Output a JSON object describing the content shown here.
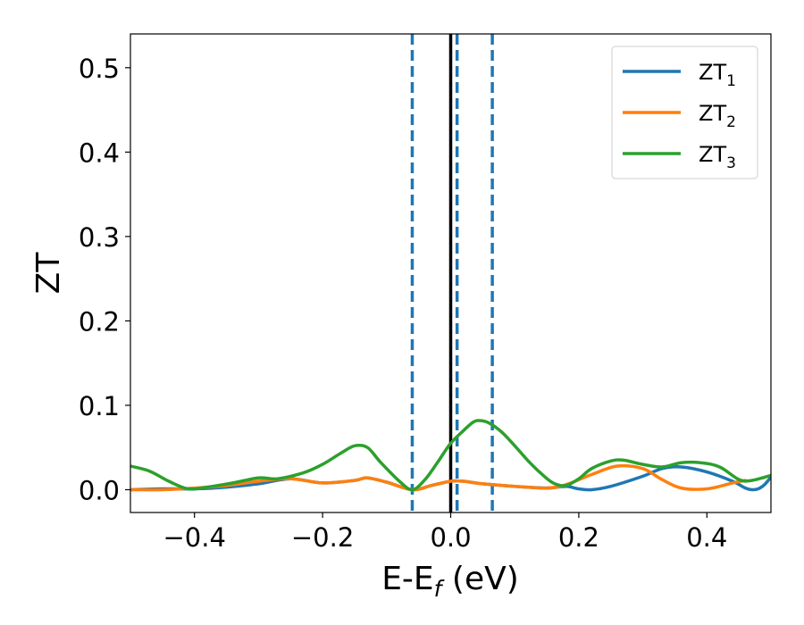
{
  "chart_data": {
    "type": "line",
    "xlabel": "E-E",
    "xlabel_sub": "f",
    "xlabel_unit": " (eV)",
    "ylabel": "ZT",
    "xlim": [
      -0.5,
      0.5
    ],
    "ylim": [
      -0.027,
      0.54
    ],
    "xticks": [
      -0.4,
      -0.2,
      0.0,
      0.2,
      0.4
    ],
    "xtick_labels": [
      "−0.4",
      "−0.2",
      "0.0",
      "0.2",
      "0.4"
    ],
    "yticks": [
      0.0,
      0.1,
      0.2,
      0.3,
      0.4,
      0.5
    ],
    "ytick_labels": [
      "0.0",
      "0.1",
      "0.2",
      "0.3",
      "0.4",
      "0.5"
    ],
    "grid": false,
    "legend_position": "top-right",
    "series": [
      {
        "name": "ZT",
        "name_sub": "1",
        "color": "#1f77b4",
        "points": [
          [
            -0.5,
            0.0
          ],
          [
            -0.45,
            0.001
          ],
          [
            -0.4,
            0.001
          ],
          [
            -0.35,
            0.003
          ],
          [
            -0.3,
            0.007
          ],
          [
            -0.25,
            0.013
          ],
          [
            -0.2,
            0.008
          ],
          [
            -0.15,
            0.011
          ],
          [
            -0.13,
            0.014
          ],
          [
            -0.1,
            0.009
          ],
          [
            -0.06,
            0.0
          ],
          [
            -0.03,
            0.005
          ],
          [
            0.0,
            0.01
          ],
          [
            0.02,
            0.01
          ],
          [
            0.05,
            0.007
          ],
          [
            0.1,
            0.004
          ],
          [
            0.15,
            0.002
          ],
          [
            0.18,
            0.004
          ],
          [
            0.2,
            0.001
          ],
          [
            0.22,
            0.0
          ],
          [
            0.25,
            0.004
          ],
          [
            0.3,
            0.016
          ],
          [
            0.33,
            0.025
          ],
          [
            0.36,
            0.027
          ],
          [
            0.4,
            0.021
          ],
          [
            0.44,
            0.01
          ],
          [
            0.46,
            0.002
          ],
          [
            0.47,
            0.0
          ],
          [
            0.48,
            0.001
          ],
          [
            0.49,
            0.006
          ],
          [
            0.5,
            0.015
          ]
        ]
      },
      {
        "name": "ZT",
        "name_sub": "2",
        "color": "#ff7f0e",
        "points": [
          [
            -0.5,
            0.0
          ],
          [
            -0.45,
            0.0
          ],
          [
            -0.4,
            0.002
          ],
          [
            -0.35,
            0.005
          ],
          [
            -0.3,
            0.01
          ],
          [
            -0.25,
            0.013
          ],
          [
            -0.2,
            0.008
          ],
          [
            -0.15,
            0.011
          ],
          [
            -0.13,
            0.014
          ],
          [
            -0.1,
            0.009
          ],
          [
            -0.06,
            0.0
          ],
          [
            -0.03,
            0.005
          ],
          [
            0.0,
            0.01
          ],
          [
            0.02,
            0.01
          ],
          [
            0.05,
            0.007
          ],
          [
            0.1,
            0.004
          ],
          [
            0.15,
            0.002
          ],
          [
            0.18,
            0.006
          ],
          [
            0.22,
            0.018
          ],
          [
            0.26,
            0.028
          ],
          [
            0.3,
            0.025
          ],
          [
            0.33,
            0.012
          ],
          [
            0.36,
            0.002
          ],
          [
            0.4,
            0.001
          ],
          [
            0.44,
            0.008
          ],
          [
            0.46,
            0.011
          ]
        ]
      },
      {
        "name": "ZT",
        "name_sub": "3",
        "color": "#2ca02c",
        "points": [
          [
            -0.5,
            0.028
          ],
          [
            -0.47,
            0.022
          ],
          [
            -0.44,
            0.01
          ],
          [
            -0.41,
            0.001
          ],
          [
            -0.38,
            0.003
          ],
          [
            -0.34,
            0.008
          ],
          [
            -0.3,
            0.014
          ],
          [
            -0.27,
            0.013
          ],
          [
            -0.23,
            0.02
          ],
          [
            -0.2,
            0.03
          ],
          [
            -0.17,
            0.044
          ],
          [
            -0.15,
            0.052
          ],
          [
            -0.13,
            0.05
          ],
          [
            -0.11,
            0.033
          ],
          [
            -0.08,
            0.01
          ],
          [
            -0.06,
            0.0
          ],
          [
            -0.04,
            0.012
          ],
          [
            -0.02,
            0.033
          ],
          [
            0.0,
            0.055
          ],
          [
            0.02,
            0.07
          ],
          [
            0.035,
            0.08
          ],
          [
            0.045,
            0.082
          ],
          [
            0.06,
            0.079
          ],
          [
            0.08,
            0.068
          ],
          [
            0.1,
            0.052
          ],
          [
            0.12,
            0.035
          ],
          [
            0.14,
            0.02
          ],
          [
            0.16,
            0.008
          ],
          [
            0.18,
            0.005
          ],
          [
            0.2,
            0.013
          ],
          [
            0.22,
            0.025
          ],
          [
            0.25,
            0.034
          ],
          [
            0.27,
            0.035
          ],
          [
            0.3,
            0.03
          ],
          [
            0.33,
            0.027
          ],
          [
            0.36,
            0.032
          ],
          [
            0.39,
            0.032
          ],
          [
            0.42,
            0.027
          ],
          [
            0.45,
            0.012
          ],
          [
            0.47,
            0.011
          ],
          [
            0.5,
            0.017
          ]
        ]
      }
    ],
    "vlines": [
      {
        "x": -0.06,
        "style": "dashed",
        "color": "#1f77b4"
      },
      {
        "x": 0.0,
        "style": "solid",
        "color": "#000000"
      },
      {
        "x": 0.01,
        "style": "dashed",
        "color": "#1f77b4"
      },
      {
        "x": 0.065,
        "style": "dashed",
        "color": "#1f77b4"
      }
    ]
  }
}
